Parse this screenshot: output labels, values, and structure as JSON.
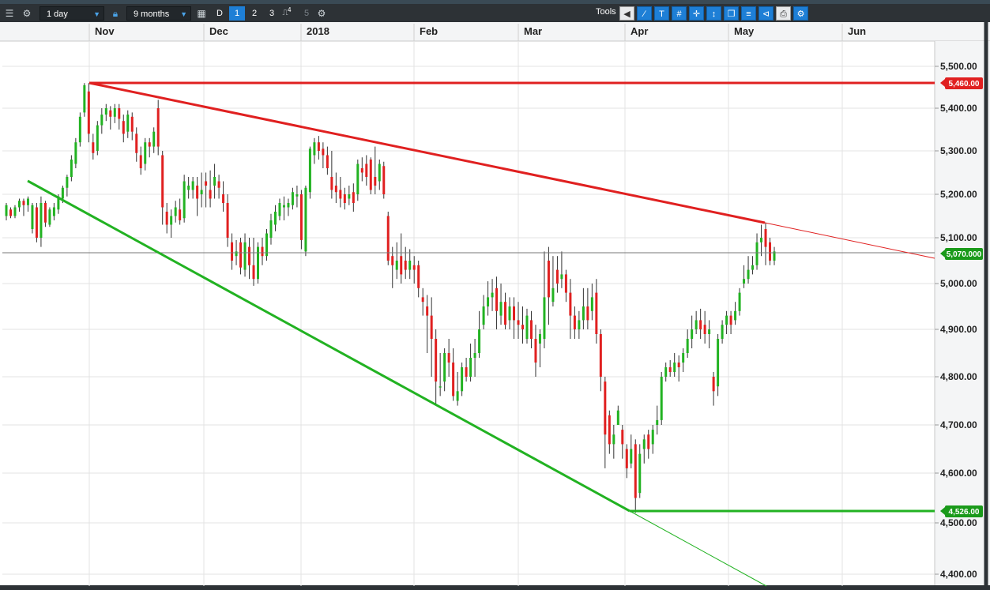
{
  "toolbar": {
    "interval": "1 day",
    "range": "9 months",
    "period_buttons": [
      "D",
      "1",
      "2",
      "3",
      "5"
    ],
    "period_superscript": "4",
    "active_period": "1",
    "tools_label": "Tools",
    "icons": [
      "menu-icon",
      "gear-icon",
      "lock-icon",
      "calendar-icon",
      "candle-type-icon",
      "settings-icon",
      "back-arrow-icon",
      "line-tool-icon",
      "text-tool-icon",
      "grid-tool-icon",
      "crosshair-icon",
      "indicator-icon",
      "layers-icon",
      "fibonacci-icon",
      "trendline-icon",
      "print-icon",
      "config-icon"
    ]
  },
  "chart_data": {
    "type": "candlestick",
    "x_months": [
      "Nov",
      "Dec",
      "2018",
      "Feb",
      "Mar",
      "Apr",
      "May",
      "Jun"
    ],
    "y_ticks": [
      "5,500.00",
      "5,400.00",
      "5,300.00",
      "5,200.00",
      "5,100.00",
      "5,000.00",
      "4,900.00",
      "4,800.00",
      "4,700.00",
      "4,600.00",
      "4,500.00",
      "4,400.00"
    ],
    "ylim": [
      4400,
      5550
    ],
    "current_price": "5,070.000",
    "resistance_level": "5,460.00",
    "support_level": "4,526.00",
    "colors": {
      "up": "#22b222",
      "down": "#e02020",
      "resistance": "#e02020",
      "support": "#22b222",
      "current": "#1a9a1a"
    },
    "candles": [
      [
        5150,
        5175,
        5140,
        5180
      ],
      [
        5165,
        5150,
        5145,
        5170
      ],
      [
        5150,
        5170,
        5145,
        5175
      ],
      [
        5170,
        5185,
        5160,
        5190
      ],
      [
        5185,
        5175,
        5150,
        5190
      ],
      [
        5175,
        5190,
        5160,
        5195
      ],
      [
        5120,
        5175,
        5110,
        5180
      ],
      [
        5170,
        5100,
        5090,
        5180
      ],
      [
        5100,
        5180,
        5080,
        5195
      ],
      [
        5180,
        5135,
        5125,
        5185
      ],
      [
        5130,
        5165,
        5125,
        5170
      ],
      [
        5150,
        5170,
        5140,
        5180
      ],
      [
        5165,
        5195,
        5155,
        5200
      ],
      [
        5190,
        5215,
        5180,
        5220
      ],
      [
        5215,
        5240,
        5195,
        5245
      ],
      [
        5240,
        5280,
        5230,
        5290
      ],
      [
        5270,
        5320,
        5260,
        5330
      ],
      [
        5320,
        5380,
        5310,
        5390
      ],
      [
        5390,
        5455,
        5380,
        5460
      ],
      [
        5440,
        5340,
        5320,
        5460
      ],
      [
        5320,
        5295,
        5280,
        5340
      ],
      [
        5300,
        5360,
        5290,
        5370
      ],
      [
        5360,
        5385,
        5340,
        5400
      ],
      [
        5385,
        5400,
        5370,
        5410
      ],
      [
        5395,
        5380,
        5350,
        5405
      ],
      [
        5380,
        5400,
        5365,
        5410
      ],
      [
        5400,
        5375,
        5350,
        5410
      ],
      [
        5370,
        5340,
        5320,
        5385
      ],
      [
        5345,
        5385,
        5330,
        5395
      ],
      [
        5380,
        5345,
        5325,
        5390
      ],
      [
        5340,
        5295,
        5275,
        5355
      ],
      [
        5290,
        5260,
        5245,
        5310
      ],
      [
        5270,
        5320,
        5255,
        5330
      ],
      [
        5320,
        5310,
        5285,
        5330
      ],
      [
        5310,
        5345,
        5295,
        5355
      ],
      [
        5400,
        5310,
        5290,
        5420
      ],
      [
        5290,
        5170,
        5130,
        5300
      ],
      [
        5160,
        5130,
        5110,
        5180
      ],
      [
        5130,
        5150,
        5100,
        5165
      ],
      [
        5150,
        5170,
        5135,
        5185
      ],
      [
        5165,
        5140,
        5130,
        5190
      ],
      [
        5145,
        5230,
        5135,
        5245
      ],
      [
        5210,
        5220,
        5190,
        5240
      ],
      [
        5210,
        5230,
        5190,
        5240
      ],
      [
        5220,
        5190,
        5150,
        5240
      ],
      [
        5200,
        5210,
        5170,
        5250
      ],
      [
        5230,
        5220,
        5170,
        5250
      ],
      [
        5210,
        5190,
        5170,
        5255
      ],
      [
        5220,
        5240,
        5190,
        5270
      ],
      [
        5230,
        5215,
        5190,
        5245
      ],
      [
        5200,
        5180,
        5160,
        5230
      ],
      [
        5180,
        5100,
        5080,
        5200
      ],
      [
        5090,
        5050,
        5030,
        5110
      ],
      [
        5060,
        5070,
        5040,
        5095
      ],
      [
        5090,
        5035,
        5020,
        5100
      ],
      [
        5030,
        5090,
        5015,
        5110
      ],
      [
        5080,
        5040,
        5010,
        5100
      ],
      [
        5040,
        5010,
        4995,
        5100
      ],
      [
        5010,
        5080,
        5000,
        5090
      ],
      [
        5080,
        5060,
        5040,
        5100
      ],
      [
        5060,
        5110,
        5050,
        5120
      ],
      [
        5100,
        5140,
        5085,
        5155
      ],
      [
        5130,
        5160,
        5115,
        5175
      ],
      [
        5150,
        5180,
        5140,
        5190
      ],
      [
        5170,
        5175,
        5140,
        5195
      ],
      [
        5170,
        5180,
        5150,
        5190
      ],
      [
        5175,
        5205,
        5165,
        5215
      ],
      [
        5195,
        5200,
        5170,
        5220
      ],
      [
        5200,
        5095,
        5075,
        5210
      ],
      [
        5070,
        5215,
        5060,
        5220
      ],
      [
        5205,
        5305,
        5190,
        5310
      ],
      [
        5290,
        5320,
        5270,
        5330
      ],
      [
        5320,
        5300,
        5280,
        5335
      ],
      [
        5305,
        5290,
        5260,
        5320
      ],
      [
        5290,
        5260,
        5245,
        5310
      ],
      [
        5240,
        5210,
        5190,
        5300
      ],
      [
        5220,
        5205,
        5180,
        5250
      ],
      [
        5210,
        5190,
        5170,
        5240
      ],
      [
        5200,
        5180,
        5165,
        5215
      ],
      [
        5190,
        5200,
        5175,
        5220
      ],
      [
        5205,
        5180,
        5160,
        5225
      ],
      [
        5200,
        5270,
        5185,
        5280
      ],
      [
        5260,
        5250,
        5230,
        5285
      ],
      [
        5270,
        5240,
        5220,
        5290
      ],
      [
        5280,
        5210,
        5200,
        5285
      ],
      [
        5240,
        5220,
        5200,
        5310
      ],
      [
        5230,
        5270,
        5210,
        5280
      ],
      [
        5265,
        5200,
        5190,
        5275
      ],
      [
        5150,
        5050,
        5040,
        5160
      ],
      [
        5060,
        5040,
        4990,
        5080
      ],
      [
        5030,
        5050,
        5010,
        5090
      ],
      [
        5060,
        5020,
        5000,
        5110
      ],
      [
        5050,
        5030,
        5010,
        5080
      ],
      [
        5030,
        5050,
        5010,
        5075
      ],
      [
        5040,
        5030,
        5000,
        5060
      ],
      [
        5040,
        4990,
        4970,
        5050
      ],
      [
        4970,
        4960,
        4930,
        4990
      ],
      [
        4950,
        4930,
        4850,
        4975
      ],
      [
        4930,
        4880,
        4800,
        4970
      ],
      [
        4880,
        4790,
        4740,
        4900
      ],
      [
        4780,
        4780,
        4760,
        4850
      ],
      [
        4790,
        4850,
        4770,
        4860
      ],
      [
        4850,
        4830,
        4800,
        4880
      ],
      [
        4830,
        4760,
        4750,
        4860
      ],
      [
        4750,
        4770,
        4740,
        4810
      ],
      [
        4770,
        4820,
        4760,
        4830
      ],
      [
        4820,
        4800,
        4790,
        4840
      ],
      [
        4800,
        4840,
        4790,
        4870
      ],
      [
        4840,
        4850,
        4800,
        4880
      ],
      [
        4850,
        4900,
        4840,
        4940
      ],
      [
        4910,
        4950,
        4900,
        4975
      ],
      [
        4950,
        4970,
        4930,
        5005
      ],
      [
        4970,
        4980,
        4940,
        5010
      ],
      [
        4990,
        4940,
        4900,
        5015
      ],
      [
        4930,
        4960,
        4910,
        5000
      ],
      [
        4960,
        4910,
        4900,
        4980
      ],
      [
        4920,
        4950,
        4900,
        4970
      ],
      [
        4950,
        4920,
        4880,
        4970
      ],
      [
        4920,
        4910,
        4880,
        4960
      ],
      [
        4910,
        4900,
        4870,
        4950
      ],
      [
        4880,
        4930,
        4870,
        4945
      ],
      [
        4920,
        4880,
        4860,
        4940
      ],
      [
        4880,
        4830,
        4800,
        4910
      ],
      [
        4870,
        4890,
        4820,
        4900
      ],
      [
        4880,
        4970,
        4860,
        5070
      ],
      [
        5050,
        4970,
        4910,
        5080
      ],
      [
        4960,
        4990,
        4950,
        5060
      ],
      [
        5030,
        5000,
        4980,
        5060
      ],
      [
        5010,
        5020,
        4990,
        5070
      ],
      [
        5020,
        4980,
        4960,
        5030
      ],
      [
        4980,
        4930,
        4880,
        5010
      ],
      [
        4930,
        4900,
        4880,
        4950
      ],
      [
        4900,
        4920,
        4880,
        4940
      ],
      [
        4920,
        4950,
        4900,
        4990
      ],
      [
        4950,
        4920,
        4900,
        4990
      ],
      [
        4940,
        4970,
        4920,
        5000
      ],
      [
        4980,
        4890,
        4870,
        5010
      ],
      [
        4890,
        4800,
        4770,
        4900
      ],
      [
        4790,
        4680,
        4610,
        4800
      ],
      [
        4720,
        4660,
        4640,
        4730
      ],
      [
        4660,
        4680,
        4630,
        4700
      ],
      [
        4700,
        4730,
        4700,
        4740
      ],
      [
        4690,
        4660,
        4630,
        4700
      ],
      [
        4650,
        4610,
        4590,
        4660
      ],
      [
        4620,
        4650,
        4610,
        4680
      ],
      [
        4660,
        4550,
        4520,
        4670
      ],
      [
        4560,
        4640,
        4550,
        4660
      ],
      [
        4650,
        4670,
        4620,
        4680
      ],
      [
        4680,
        4650,
        4630,
        4690
      ],
      [
        4660,
        4690,
        4640,
        4700
      ],
      [
        4700,
        4710,
        4680,
        4740
      ],
      [
        4710,
        4800,
        4700,
        4810
      ],
      [
        4800,
        4820,
        4790,
        4830
      ],
      [
        4820,
        4810,
        4800,
        4835
      ],
      [
        4810,
        4830,
        4800,
        4850
      ],
      [
        4830,
        4820,
        4790,
        4845
      ],
      [
        4830,
        4850,
        4810,
        4860
      ],
      [
        4850,
        4880,
        4840,
        4900
      ],
      [
        4880,
        4900,
        4860,
        4930
      ],
      [
        4900,
        4920,
        4890,
        4940
      ],
      [
        4920,
        4900,
        4880,
        4945
      ],
      [
        4910,
        4890,
        4870,
        4940
      ],
      [
        4890,
        4900,
        4860,
        4920
      ],
      [
        4800,
        4770,
        4740,
        4810
      ],
      [
        4780,
        4880,
        4760,
        4890
      ],
      [
        4880,
        4910,
        4870,
        4920
      ],
      [
        4910,
        4930,
        4890,
        4940
      ],
      [
        4930,
        4910,
        4890,
        4940
      ],
      [
        4920,
        4940,
        4910,
        4960
      ],
      [
        4940,
        4980,
        4930,
        4990
      ],
      [
        5000,
        5010,
        4990,
        5040
      ],
      [
        5010,
        5030,
        5000,
        5060
      ],
      [
        5030,
        5040,
        5020,
        5060
      ],
      [
        5040,
        5090,
        5030,
        5110
      ],
      [
        5090,
        5100,
        5060,
        5130
      ],
      [
        5120,
        5080,
        5040,
        5135
      ],
      [
        5090,
        5050,
        5040,
        5100
      ],
      [
        5050,
        5070,
        5040,
        5080
      ]
    ]
  }
}
